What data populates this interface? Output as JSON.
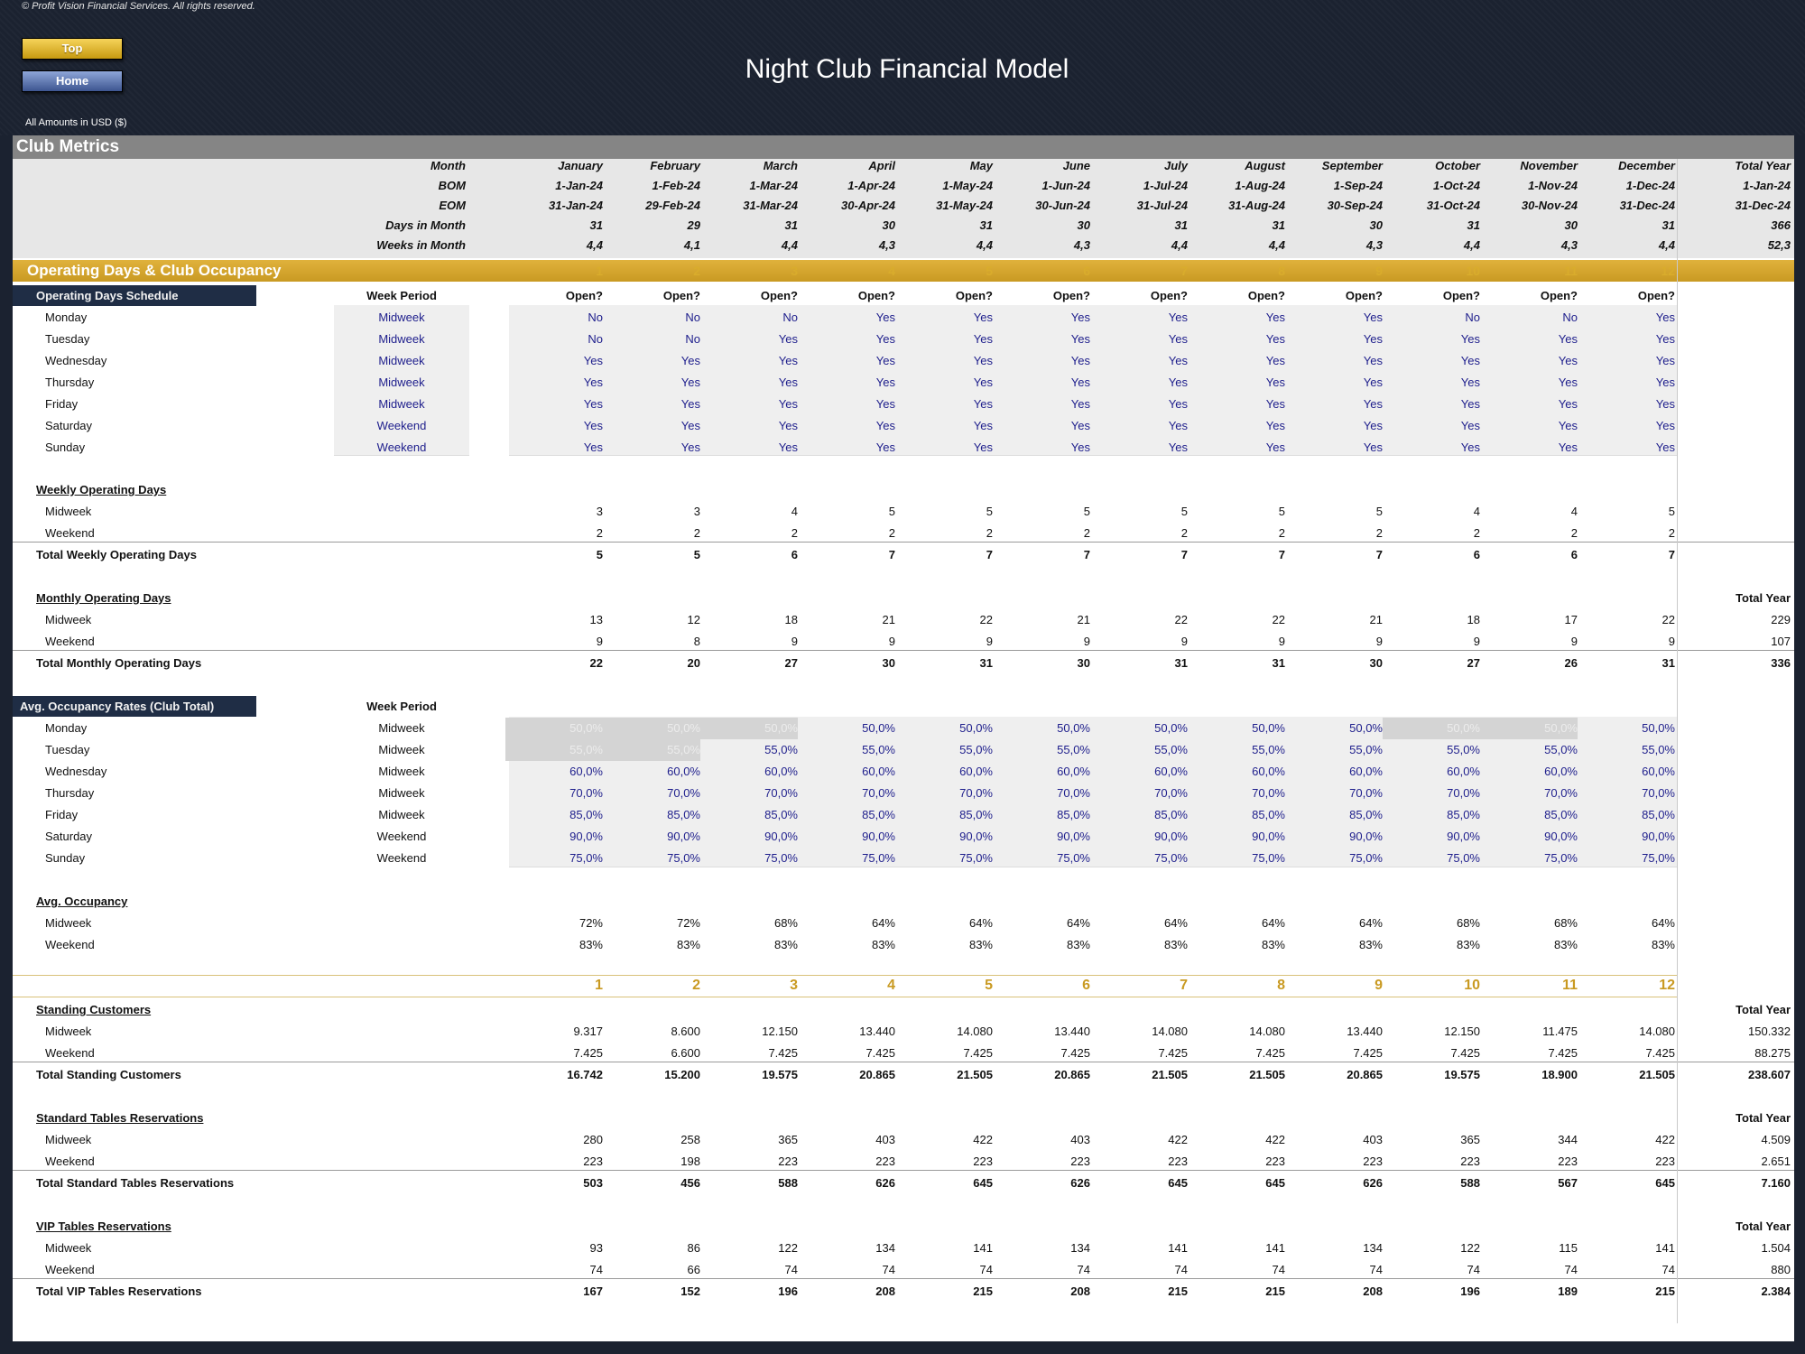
{
  "header": {
    "copyright": "© Profit Vision Financial Services. All rights reserved.",
    "title": "Night Club Financial Model",
    "top_button": "Top",
    "home_button": "Home",
    "amounts_label": "All Amounts in  USD ($)"
  },
  "club_metrics": {
    "banner": "Club Metrics",
    "labels": {
      "month": "Month",
      "bom": "BOM",
      "eom": "EOM",
      "days": "Days in Month",
      "weeks": "Weeks in Month"
    },
    "months": [
      "January",
      "February",
      "March",
      "April",
      "May",
      "June",
      "July",
      "August",
      "September",
      "October",
      "November",
      "December",
      "Total Year"
    ],
    "bom": [
      "1-Jan-24",
      "1-Feb-24",
      "1-Mar-24",
      "1-Apr-24",
      "1-May-24",
      "1-Jun-24",
      "1-Jul-24",
      "1-Aug-24",
      "1-Sep-24",
      "1-Oct-24",
      "1-Nov-24",
      "1-Dec-24",
      "1-Jan-24"
    ],
    "eom": [
      "31-Jan-24",
      "29-Feb-24",
      "31-Mar-24",
      "30-Apr-24",
      "31-May-24",
      "30-Jun-24",
      "31-Jul-24",
      "31-Aug-24",
      "30-Sep-24",
      "31-Oct-24",
      "30-Nov-24",
      "31-Dec-24",
      "31-Dec-24"
    ],
    "days": [
      "31",
      "29",
      "31",
      "30",
      "31",
      "30",
      "31",
      "31",
      "30",
      "31",
      "30",
      "31",
      "366"
    ],
    "weeks": [
      "4,4",
      "4,1",
      "4,4",
      "4,3",
      "4,4",
      "4,3",
      "4,4",
      "4,4",
      "4,3",
      "4,4",
      "4,3",
      "4,4",
      "52,3"
    ]
  },
  "operating": {
    "banner": "Operating Days & Club Occupancy",
    "index": [
      "1",
      "2",
      "3",
      "4",
      "5",
      "6",
      "7",
      "8",
      "9",
      "10",
      "11",
      "12"
    ],
    "schedule_label": "Operating Days Schedule",
    "week_period_label": "Week Period",
    "open_label": "Open?",
    "schedule": [
      {
        "day": "Monday",
        "period": "Midweek",
        "values": [
          "No",
          "No",
          "No",
          "Yes",
          "Yes",
          "Yes",
          "Yes",
          "Yes",
          "Yes",
          "No",
          "No",
          "Yes"
        ]
      },
      {
        "day": "Tuesday",
        "period": "Midweek",
        "values": [
          "No",
          "No",
          "Yes",
          "Yes",
          "Yes",
          "Yes",
          "Yes",
          "Yes",
          "Yes",
          "Yes",
          "Yes",
          "Yes"
        ]
      },
      {
        "day": "Wednesday",
        "period": "Midweek",
        "values": [
          "Yes",
          "Yes",
          "Yes",
          "Yes",
          "Yes",
          "Yes",
          "Yes",
          "Yes",
          "Yes",
          "Yes",
          "Yes",
          "Yes"
        ]
      },
      {
        "day": "Thursday",
        "period": "Midweek",
        "values": [
          "Yes",
          "Yes",
          "Yes",
          "Yes",
          "Yes",
          "Yes",
          "Yes",
          "Yes",
          "Yes",
          "Yes",
          "Yes",
          "Yes"
        ]
      },
      {
        "day": "Friday",
        "period": "Midweek",
        "values": [
          "Yes",
          "Yes",
          "Yes",
          "Yes",
          "Yes",
          "Yes",
          "Yes",
          "Yes",
          "Yes",
          "Yes",
          "Yes",
          "Yes"
        ]
      },
      {
        "day": "Saturday",
        "period": "Weekend",
        "values": [
          "Yes",
          "Yes",
          "Yes",
          "Yes",
          "Yes",
          "Yes",
          "Yes",
          "Yes",
          "Yes",
          "Yes",
          "Yes",
          "Yes"
        ]
      },
      {
        "day": "Sunday",
        "period": "Weekend",
        "values": [
          "Yes",
          "Yes",
          "Yes",
          "Yes",
          "Yes",
          "Yes",
          "Yes",
          "Yes",
          "Yes",
          "Yes",
          "Yes",
          "Yes"
        ]
      }
    ],
    "weekly": {
      "title": "Weekly Operating Days",
      "midweek_label": "Midweek",
      "weekend_label": "Weekend",
      "midweek": [
        "3",
        "3",
        "4",
        "5",
        "5",
        "5",
        "5",
        "5",
        "5",
        "4",
        "4",
        "5"
      ],
      "weekend": [
        "2",
        "2",
        "2",
        "2",
        "2",
        "2",
        "2",
        "2",
        "2",
        "2",
        "2",
        "2"
      ],
      "total_label": "Total Weekly Operating Days",
      "total": [
        "5",
        "5",
        "6",
        "7",
        "7",
        "7",
        "7",
        "7",
        "7",
        "6",
        "6",
        "7"
      ]
    },
    "monthly": {
      "title": "Monthly Operating Days",
      "total_year_label": "Total Year",
      "midweek_label": "Midweek",
      "weekend_label": "Weekend",
      "midweek": [
        "13",
        "12",
        "18",
        "21",
        "22",
        "21",
        "22",
        "22",
        "21",
        "18",
        "17",
        "22",
        "229"
      ],
      "weekend": [
        "9",
        "8",
        "9",
        "9",
        "9",
        "9",
        "9",
        "9",
        "9",
        "9",
        "9",
        "9",
        "107"
      ],
      "total_label": "Total Monthly Operating Days",
      "total": [
        "22",
        "20",
        "27",
        "30",
        "31",
        "30",
        "31",
        "31",
        "30",
        "27",
        "26",
        "31",
        "336"
      ]
    },
    "occupancy_rates": {
      "title": "Avg. Occupancy Rates (Club Total)",
      "week_period_label": "Week Period",
      "rows": [
        {
          "day": "Monday",
          "period": "Midweek",
          "values": [
            "50,0%",
            "50,0%",
            "50,0%",
            "50,0%",
            "50,0%",
            "50,0%",
            "50,0%",
            "50,0%",
            "50,0%",
            "50,0%",
            "50,0%",
            "50,0%"
          ],
          "disabled": [
            true,
            true,
            true,
            false,
            false,
            false,
            false,
            false,
            false,
            true,
            true,
            false
          ]
        },
        {
          "day": "Tuesday",
          "period": "Midweek",
          "values": [
            "55,0%",
            "55,0%",
            "55,0%",
            "55,0%",
            "55,0%",
            "55,0%",
            "55,0%",
            "55,0%",
            "55,0%",
            "55,0%",
            "55,0%",
            "55,0%"
          ],
          "disabled": [
            true,
            true,
            false,
            false,
            false,
            false,
            false,
            false,
            false,
            false,
            false,
            false
          ]
        },
        {
          "day": "Wednesday",
          "period": "Midweek",
          "values": [
            "60,0%",
            "60,0%",
            "60,0%",
            "60,0%",
            "60,0%",
            "60,0%",
            "60,0%",
            "60,0%",
            "60,0%",
            "60,0%",
            "60,0%",
            "60,0%"
          ],
          "disabled": [
            false,
            false,
            false,
            false,
            false,
            false,
            false,
            false,
            false,
            false,
            false,
            false
          ]
        },
        {
          "day": "Thursday",
          "period": "Midweek",
          "values": [
            "70,0%",
            "70,0%",
            "70,0%",
            "70,0%",
            "70,0%",
            "70,0%",
            "70,0%",
            "70,0%",
            "70,0%",
            "70,0%",
            "70,0%",
            "70,0%"
          ],
          "disabled": [
            false,
            false,
            false,
            false,
            false,
            false,
            false,
            false,
            false,
            false,
            false,
            false
          ]
        },
        {
          "day": "Friday",
          "period": "Midweek",
          "values": [
            "85,0%",
            "85,0%",
            "85,0%",
            "85,0%",
            "85,0%",
            "85,0%",
            "85,0%",
            "85,0%",
            "85,0%",
            "85,0%",
            "85,0%",
            "85,0%"
          ],
          "disabled": [
            false,
            false,
            false,
            false,
            false,
            false,
            false,
            false,
            false,
            false,
            false,
            false
          ]
        },
        {
          "day": "Saturday",
          "period": "Weekend",
          "values": [
            "90,0%",
            "90,0%",
            "90,0%",
            "90,0%",
            "90,0%",
            "90,0%",
            "90,0%",
            "90,0%",
            "90,0%",
            "90,0%",
            "90,0%",
            "90,0%"
          ],
          "disabled": [
            false,
            false,
            false,
            false,
            false,
            false,
            false,
            false,
            false,
            false,
            false,
            false
          ]
        },
        {
          "day": "Sunday",
          "period": "Weekend",
          "values": [
            "75,0%",
            "75,0%",
            "75,0%",
            "75,0%",
            "75,0%",
            "75,0%",
            "75,0%",
            "75,0%",
            "75,0%",
            "75,0%",
            "75,0%",
            "75,0%"
          ],
          "disabled": [
            false,
            false,
            false,
            false,
            false,
            false,
            false,
            false,
            false,
            false,
            false,
            false
          ]
        }
      ]
    },
    "avg_occupancy": {
      "title": "Avg. Occupancy",
      "midweek_label": "Midweek",
      "weekend_label": "Weekend",
      "midweek": [
        "72%",
        "72%",
        "68%",
        "64%",
        "64%",
        "64%",
        "64%",
        "64%",
        "64%",
        "68%",
        "68%",
        "64%"
      ],
      "weekend": [
        "83%",
        "83%",
        "83%",
        "83%",
        "83%",
        "83%",
        "83%",
        "83%",
        "83%",
        "83%",
        "83%",
        "83%"
      ]
    }
  },
  "customers": {
    "index": [
      "1",
      "2",
      "3",
      "4",
      "5",
      "6",
      "7",
      "8",
      "9",
      "10",
      "11",
      "12"
    ],
    "sections": [
      {
        "title": "Standing Customers",
        "total_year_label": "Total Year",
        "midweek_label": "Midweek",
        "weekend_label": "Weekend",
        "midweek": [
          "9.317",
          "8.600",
          "12.150",
          "13.440",
          "14.080",
          "13.440",
          "14.080",
          "14.080",
          "13.440",
          "12.150",
          "11.475",
          "14.080",
          "150.332"
        ],
        "weekend": [
          "7.425",
          "6.600",
          "7.425",
          "7.425",
          "7.425",
          "7.425",
          "7.425",
          "7.425",
          "7.425",
          "7.425",
          "7.425",
          "7.425",
          "88.275"
        ],
        "total_label": "Total Standing Customers",
        "total": [
          "16.742",
          "15.200",
          "19.575",
          "20.865",
          "21.505",
          "20.865",
          "21.505",
          "21.505",
          "20.865",
          "19.575",
          "18.900",
          "21.505",
          "238.607"
        ]
      },
      {
        "title": "Standard Tables Reservations",
        "total_year_label": "Total Year",
        "midweek_label": "Midweek",
        "weekend_label": "Weekend",
        "midweek": [
          "280",
          "258",
          "365",
          "403",
          "422",
          "403",
          "422",
          "422",
          "403",
          "365",
          "344",
          "422",
          "4.509"
        ],
        "weekend": [
          "223",
          "198",
          "223",
          "223",
          "223",
          "223",
          "223",
          "223",
          "223",
          "223",
          "223",
          "223",
          "2.651"
        ],
        "total_label": "Total Standard Tables Reservations",
        "total": [
          "503",
          "456",
          "588",
          "626",
          "645",
          "626",
          "645",
          "645",
          "626",
          "588",
          "567",
          "645",
          "7.160"
        ]
      },
      {
        "title": "VIP Tables Reservations",
        "total_year_label": "Total Year",
        "midweek_label": "Midweek",
        "weekend_label": "Weekend",
        "midweek": [
          "93",
          "86",
          "122",
          "134",
          "141",
          "134",
          "141",
          "141",
          "134",
          "122",
          "115",
          "141",
          "1.504"
        ],
        "weekend": [
          "74",
          "66",
          "74",
          "74",
          "74",
          "74",
          "74",
          "74",
          "74",
          "74",
          "74",
          "74",
          "880"
        ],
        "total_label": "Total VIP Tables Reservations",
        "total": [
          "167",
          "152",
          "196",
          "208",
          "215",
          "208",
          "215",
          "215",
          "208",
          "196",
          "189",
          "215",
          "2.384"
        ]
      }
    ]
  }
}
